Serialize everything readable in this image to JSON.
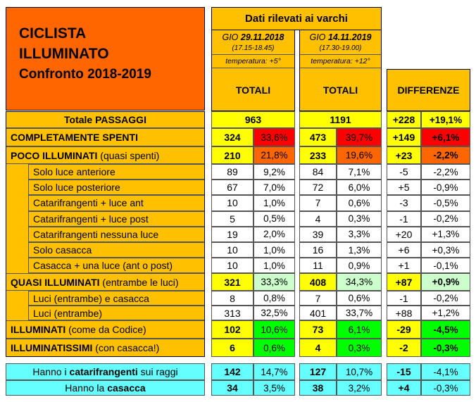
{
  "title": {
    "line1": "CICLISTA",
    "line2": "ILLUMINATO",
    "line3": "Confronto 2018-2019"
  },
  "header": {
    "dati": "Dati rilevati ai varchi",
    "date1": {
      "day": "GIO",
      "date": "29.11.2018",
      "hours": "(17.15-18.45)",
      "temp": "temperatura: +5°"
    },
    "date2": {
      "day": "GIO",
      "date": "14.11.2019",
      "hours": "(17.30-19.00)",
      "temp": "temperatura: +12°"
    },
    "totali1": "TOTALI",
    "totali2": "TOTALI",
    "differenze": "DIFFERENZE"
  },
  "rows": {
    "totale": {
      "label": "Totale PASSAGGI",
      "v1": "963",
      "v2": "1191",
      "d1": "+228",
      "d2": "+19,1%"
    },
    "spenti": {
      "label": "COMPLETAMENTE SPENTI",
      "v1": "324",
      "p1": "33,6%",
      "v2": "473",
      "p2": "39,7%",
      "d1": "+149",
      "d2": "+6,1%"
    },
    "poco": {
      "label_b": "POCO ILLUMINATI",
      "label_n": " (quasi spenti)",
      "v1": "210",
      "p1": "21,8%",
      "v2": "233",
      "p2": "19,6%",
      "d1": "+23",
      "d2": "-2,2%"
    },
    "poco_sub": [
      {
        "label": "Solo luce anteriore",
        "v1": "89",
        "p1": "9,2%",
        "v2": "84",
        "p2": "7,1%",
        "d1": "-5",
        "d2": "-2,2%"
      },
      {
        "label": "Solo luce posteriore",
        "v1": "67",
        "p1": "7,0%",
        "v2": "72",
        "p2": "6,0%",
        "d1": "+5",
        "d2": "-0,9%"
      },
      {
        "label": "Catarifrangenti + luce ant",
        "v1": "10",
        "p1": "1,0%",
        "v2": "7",
        "p2": "0,6%",
        "d1": "-3",
        "d2": "-0,5%"
      },
      {
        "label": "Catarifrangenti + luce post",
        "v1": "5",
        "p1": "0,5%",
        "v2": "4",
        "p2": "0,3%",
        "d1": "-1",
        "d2": "-0,2%"
      },
      {
        "label": "Catarifrangenti nessuna luce",
        "v1": "19",
        "p1": "2,0%",
        "v2": "39",
        "p2": "3,3%",
        "d1": "+20",
        "d2": "+1,3%"
      },
      {
        "label": "Solo casacca",
        "v1": "10",
        "p1": "1,0%",
        "v2": "16",
        "p2": "1,3%",
        "d1": "+6",
        "d2": "+0,3%"
      },
      {
        "label": "Casacca + una luce (ant o post)",
        "v1": "10",
        "p1": "1,0%",
        "v2": "11",
        "p2": "0,9%",
        "d1": "+1",
        "d2": "-0,1%"
      }
    ],
    "quasi": {
      "label_b": "QUASI ILLUMINATI",
      "label_n": " (entrambe le luci)",
      "v1": "321",
      "p1": "33,3%",
      "v2": "408",
      "p2": "34,3%",
      "d1": "+87",
      "d2": "+0,9%"
    },
    "quasi_sub": [
      {
        "label": "Luci (entrambe) e casacca",
        "v1": "8",
        "p1": "0,8%",
        "v2": "7",
        "p2": "0,6%",
        "d1": "-1",
        "d2": "-0,2%"
      },
      {
        "label": "Luci (entrambe)",
        "v1": "313",
        "p1": "32,5%",
        "v2": "401",
        "p2": "33,7%",
        "d1": "+88",
        "d2": "+1,2%"
      }
    ],
    "illuminati": {
      "label_b": "ILLUMINATI",
      "label_n": " (come da Codice)",
      "v1": "102",
      "p1": "10,6%",
      "v2": "73",
      "p2": "6,1%",
      "d1": "-29",
      "d2": "-4,5%"
    },
    "illuminatissimi": {
      "label_b": "ILLUMINATISSIMI",
      "label_n": " (con casacca!)",
      "v1": "6",
      "p1": "0,6%",
      "v2": "4",
      "p2": "0,3%",
      "d1": "-2",
      "d2": "-0,3%"
    }
  },
  "bottom": {
    "cata": {
      "pre": "Hanno i ",
      "bold": "catarifrangenti",
      "post": " sui raggi",
      "v1": "142",
      "p1": "14,7%",
      "v2": "127",
      "p2": "10,7%",
      "d1": "-15",
      "d2": "-4,1%"
    },
    "casacca": {
      "pre": "Hanno la ",
      "bold": "casacca",
      "post": "",
      "v1": "34",
      "p1": "3,5%",
      "v2": "38",
      "p2": "3,2%",
      "d1": "+4",
      "d2": "-0,3%"
    }
  }
}
